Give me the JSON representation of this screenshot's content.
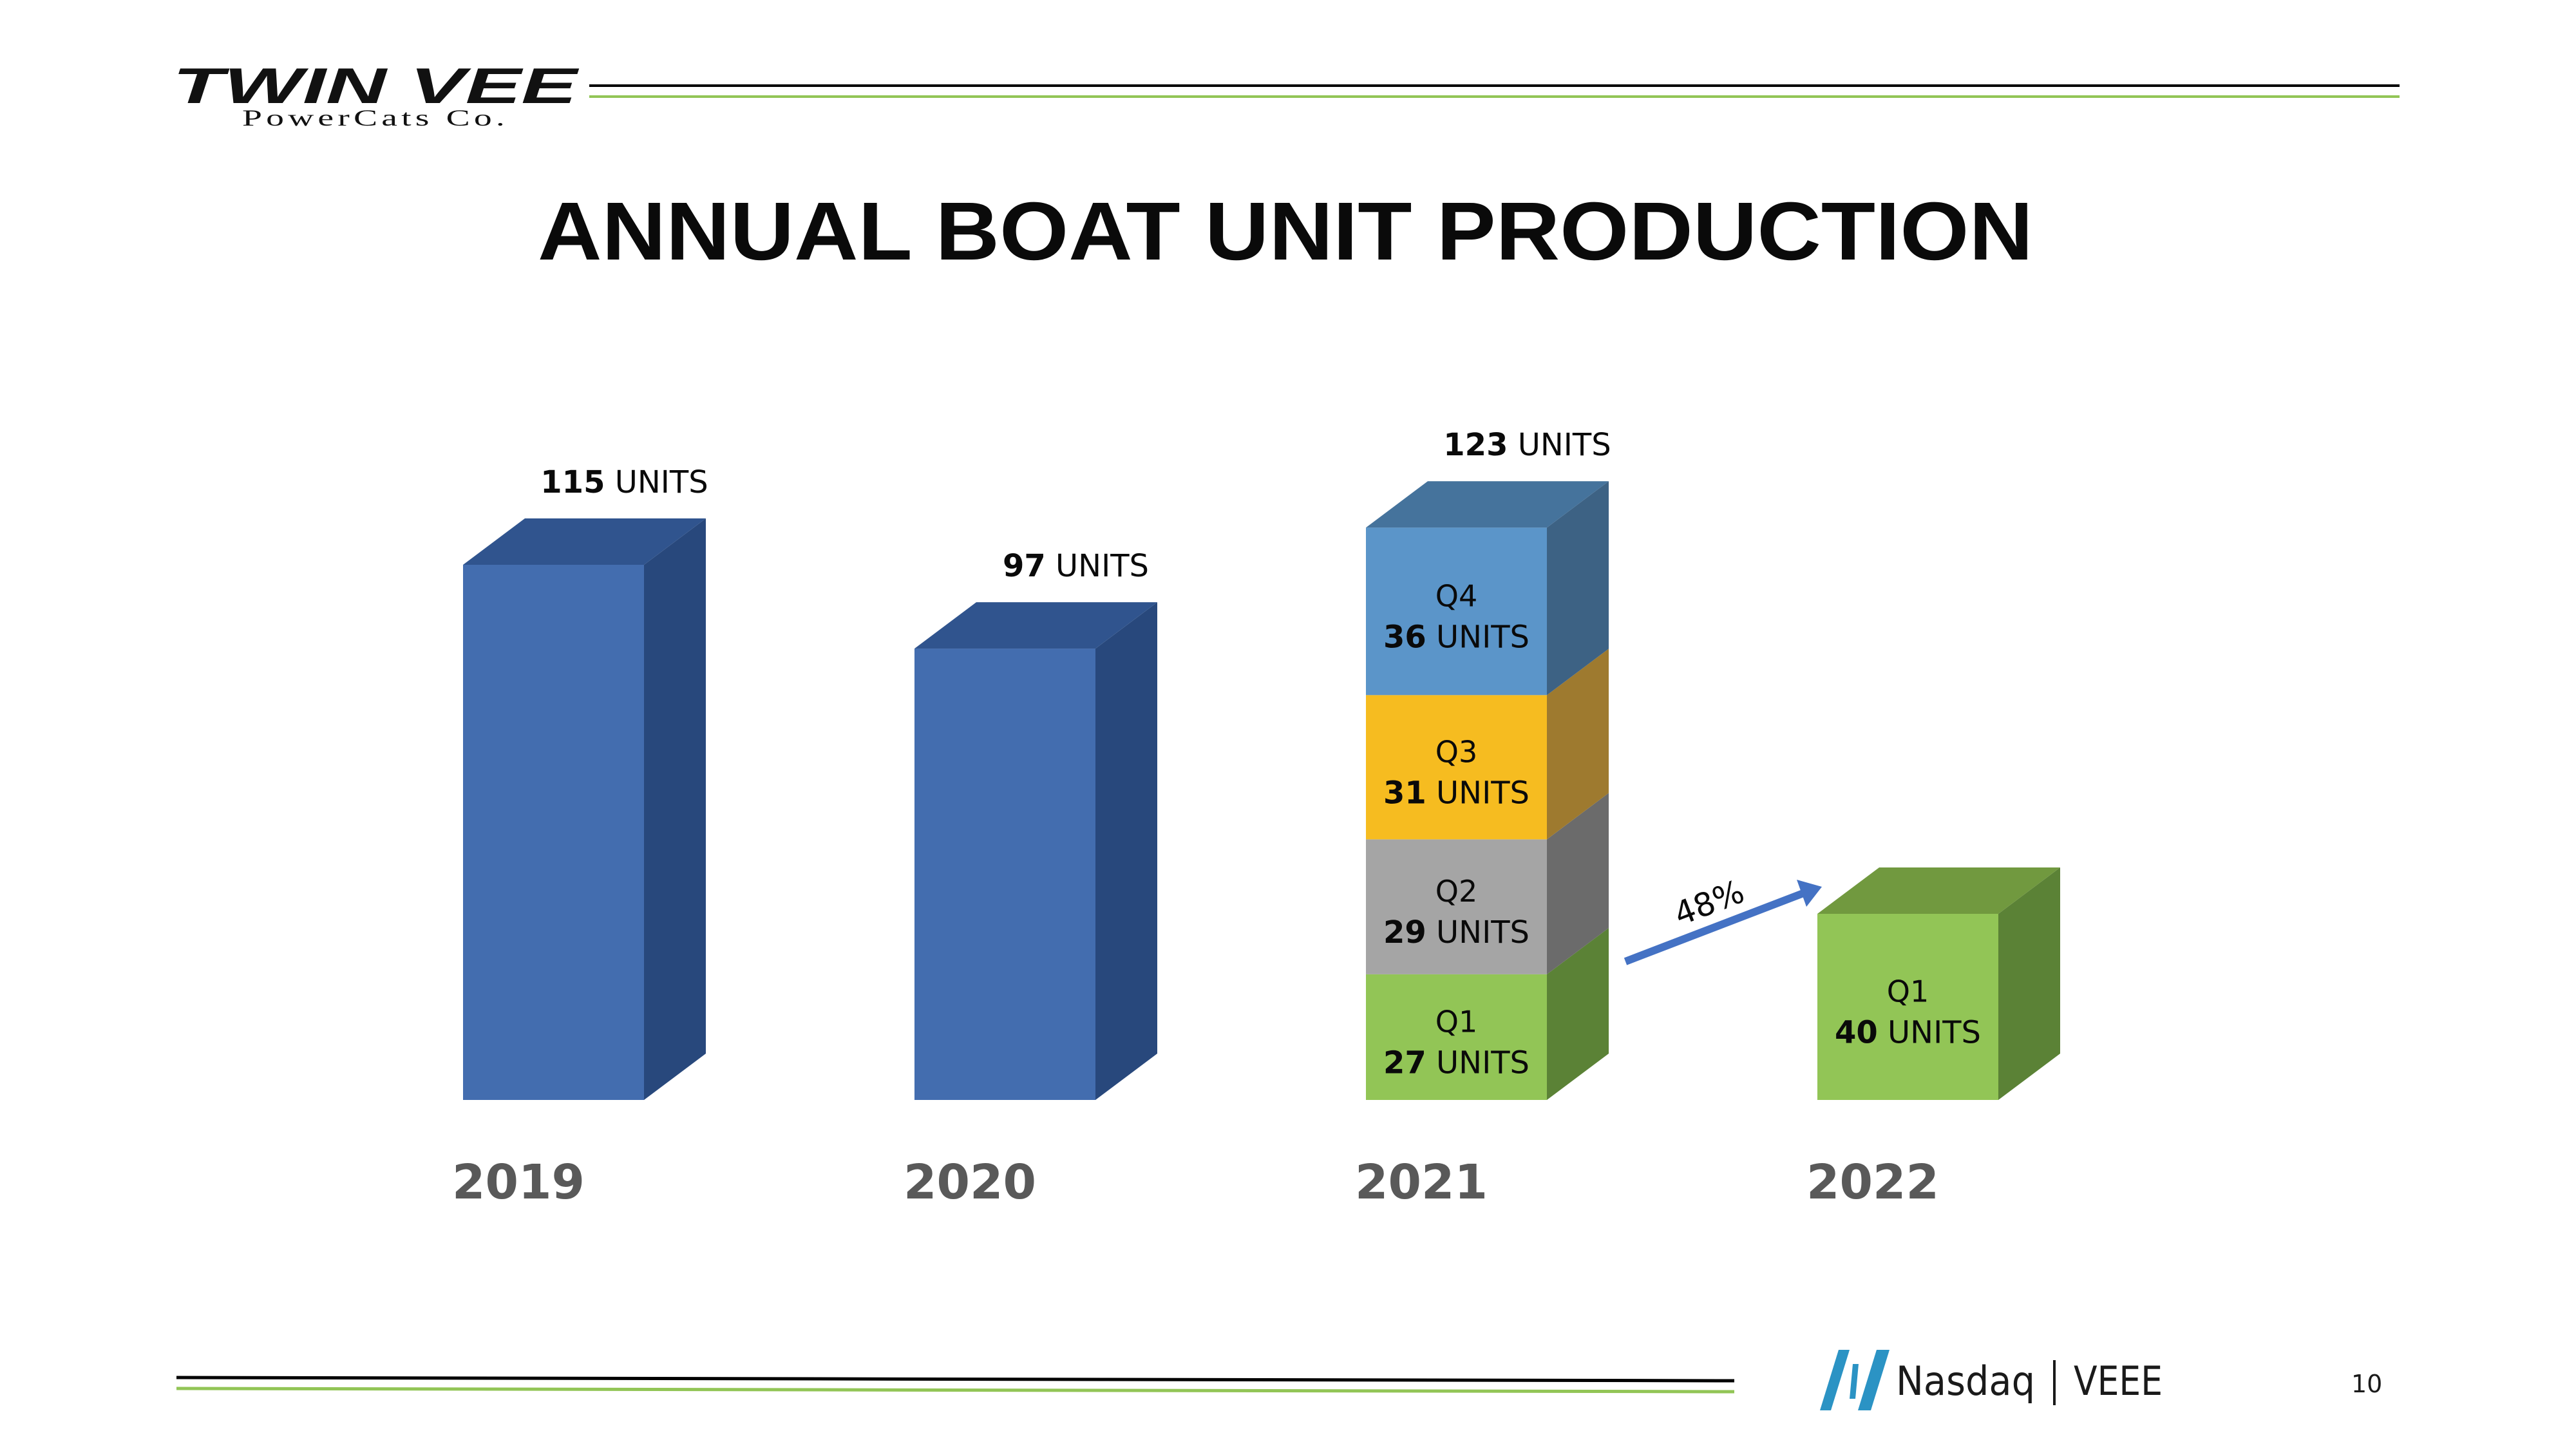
{
  "header": {
    "logo_main": "TWIN VEE",
    "logo_sub": "PowerCats Co.",
    "rule_colors": {
      "dark": "#000000",
      "accent": "#92c556"
    }
  },
  "footer": {
    "exchange_icon": "nasdaq-logo-icon",
    "exchange": "Nasdaq",
    "ticker": "VEEE",
    "page_number": "10",
    "icon_color": "#2b93c4"
  },
  "chart_data": {
    "type": "bar",
    "subtype": "stacked-3d",
    "title": "ANNUAL BOAT UNIT PRODUCTION",
    "xlabel": "",
    "ylabel": "",
    "grid": false,
    "unit_word": "UNITS",
    "categories": [
      "2019",
      "2020",
      "2021",
      "2022"
    ],
    "totals": [
      {
        "value": 115,
        "text": "115",
        "suffix": " UNITS"
      },
      {
        "value": 97,
        "text": "97",
        "suffix": " UNITS"
      },
      {
        "value": 123,
        "text": "123",
        "suffix": " UNITS"
      },
      null
    ],
    "bars": [
      {
        "category": "2019",
        "segments": [
          {
            "label": null,
            "value": 115,
            "color": "#436daf",
            "side": "#28487c",
            "top": "#30548e"
          }
        ]
      },
      {
        "category": "2020",
        "segments": [
          {
            "label": null,
            "value": 97,
            "color": "#436daf",
            "side": "#28487c",
            "top": "#30548e"
          }
        ]
      },
      {
        "category": "2021",
        "segments": [
          {
            "label": "Q1",
            "value": 27,
            "value_text": "27",
            "suffix": " UNITS",
            "color": "#92c556",
            "side": "#5b8236",
            "top": "#71993f"
          },
          {
            "label": "Q2",
            "value": 29,
            "value_text": "29",
            "suffix": " UNITS",
            "color": "#a5a5a5",
            "side": "#6b6b6b",
            "top": "#8a8a8a"
          },
          {
            "label": "Q3",
            "value": 31,
            "value_text": "31",
            "suffix": " UNITS",
            "color": "#f6bc20",
            "side": "#9e7a2f",
            "top": "#c79a2a"
          },
          {
            "label": "Q4",
            "value": 36,
            "value_text": "36",
            "suffix": " UNITS",
            "color": "#5b95c9",
            "side": "#3d6284",
            "top": "#45739c"
          }
        ]
      },
      {
        "category": "2022",
        "segments": [
          {
            "label": "Q1",
            "value": 40,
            "value_text": "40",
            "suffix": " UNITS",
            "color": "#92c556",
            "side": "#5b8236",
            "top": "#71993f"
          }
        ]
      }
    ],
    "annotation": {
      "text": "48%",
      "from": "2021 Q1",
      "to": "2022 Q1",
      "color": "#4472c4"
    },
    "ylim": [
      0,
      123
    ]
  }
}
